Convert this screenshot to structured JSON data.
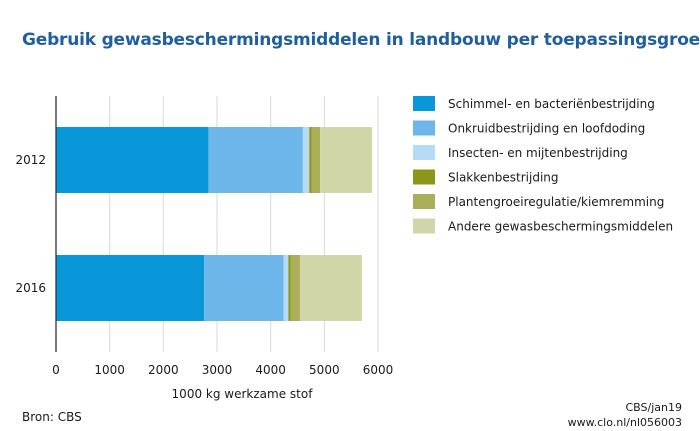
{
  "chart_data": {
    "type": "bar",
    "orientation": "horizontal",
    "stacked": true,
    "title": "Gebruik gewasbeschermingsmiddelen in landbouw per toepassingsgroep",
    "xlabel": "1000 kg werkzame stof",
    "ylabel": "",
    "xlim": [
      0,
      6000
    ],
    "xticks": [
      0,
      1000,
      2000,
      3000,
      4000,
      5000,
      6000
    ],
    "grid": "vertical",
    "legend": "right",
    "categories": [
      "2012",
      "2016"
    ],
    "series": [
      {
        "name": "Schimmel- en bacteriënbestrijding",
        "color": "#0a97d9",
        "values": [
          2840,
          2760
        ]
      },
      {
        "name": "Onkruidbestrijding en loofdoding",
        "color": "#6cb6ea",
        "values": [
          1760,
          1480
        ]
      },
      {
        "name": "Insecten- en mijtenbestrijding",
        "color": "#b6dbf6",
        "values": [
          120,
          90
        ]
      },
      {
        "name": "Slakkenbestrijding",
        "color": "#8c9618",
        "values": [
          40,
          40
        ]
      },
      {
        "name": "Plantengroeiregulatie/kiemremming",
        "color": "#aab05a",
        "values": [
          160,
          180
        ]
      },
      {
        "name": "Andere gewasbeschermingsmiddelen",
        "color": "#d1d6a8",
        "values": [
          970,
          1150
        ]
      }
    ]
  },
  "footer": {
    "source": "Bron: CBS",
    "credit": "CBS/jan19",
    "url": "www.clo.nl/nl056003"
  }
}
